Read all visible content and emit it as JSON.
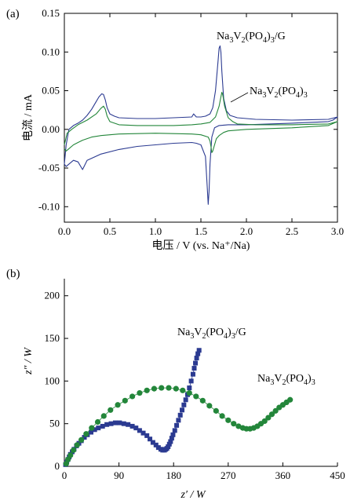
{
  "colors": {
    "blue": "#2b3a91",
    "green": "#23863a",
    "axis": "#000000"
  },
  "chart_data": [
    {
      "type": "line",
      "panel_label": "(a)",
      "xlabel": "电压 / V (vs. Na⁺/Na)",
      "ylabel": "电流 / mA",
      "xlim": [
        0.0,
        3.0
      ],
      "ylim": [
        -0.12,
        0.15
      ],
      "xticks": [
        "0.0",
        "0.5",
        "1.0",
        "1.5",
        "2.0",
        "2.5",
        "3.0"
      ],
      "yticks": [
        "-0.10",
        "-0.05",
        "0.00",
        "0.05",
        "0.10",
        "0.15"
      ],
      "series_labels": [
        "Na3V2(PO4)3/G",
        "Na3V2(PO4)3"
      ],
      "series": [
        {
          "name": "Na3V2(PO4)3/G",
          "color": "#2b3a91",
          "x": [
            0.0,
            0.02,
            0.05,
            0.1,
            0.15,
            0.2,
            0.25,
            0.3,
            0.35,
            0.38,
            0.41,
            0.43,
            0.45,
            0.47,
            0.5,
            0.55,
            0.6,
            0.8,
            1.0,
            1.2,
            1.4,
            1.42,
            1.45,
            1.5,
            1.55,
            1.6,
            1.63,
            1.66,
            1.69,
            1.7,
            1.71,
            1.72,
            1.73,
            1.75,
            1.78,
            1.82,
            1.9,
            2.1,
            2.5,
            2.9,
            3.0,
            2.95,
            2.9,
            2.5,
            2.0,
            1.8,
            1.7,
            1.65,
            1.62,
            1.6,
            1.59,
            1.58,
            1.57,
            1.55,
            1.5,
            1.45,
            1.4,
            1.2,
            1.0,
            0.8,
            0.6,
            0.4,
            0.25,
            0.2,
            0.15,
            0.1,
            0.05,
            0.02,
            0.0
          ],
          "y": [
            -0.045,
            -0.02,
            0.0,
            0.005,
            0.008,
            0.012,
            0.018,
            0.026,
            0.036,
            0.042,
            0.046,
            0.045,
            0.038,
            0.028,
            0.02,
            0.017,
            0.015,
            0.014,
            0.014,
            0.015,
            0.016,
            0.02,
            0.016,
            0.016,
            0.017,
            0.02,
            0.028,
            0.05,
            0.09,
            0.105,
            0.108,
            0.1,
            0.075,
            0.04,
            0.024,
            0.018,
            0.015,
            0.013,
            0.012,
            0.013,
            0.016,
            0.012,
            0.01,
            0.008,
            0.006,
            0.006,
            0.005,
            0.002,
            -0.01,
            -0.045,
            -0.08,
            -0.097,
            -0.075,
            -0.035,
            -0.02,
            -0.018,
            -0.017,
            -0.018,
            -0.02,
            -0.022,
            -0.026,
            -0.032,
            -0.04,
            -0.052,
            -0.042,
            -0.04,
            -0.045,
            -0.048,
            -0.045
          ]
        },
        {
          "name": "Na3V2(PO4)3",
          "color": "#23863a",
          "x": [
            0.0,
            0.03,
            0.08,
            0.15,
            0.25,
            0.35,
            0.4,
            0.43,
            0.45,
            0.47,
            0.5,
            0.6,
            0.8,
            1.0,
            1.2,
            1.4,
            1.5,
            1.6,
            1.66,
            1.7,
            1.72,
            1.73,
            1.74,
            1.76,
            1.8,
            1.85,
            1.9,
            2.1,
            2.5,
            2.9,
            3.0,
            2.9,
            2.5,
            2.0,
            1.8,
            1.75,
            1.7,
            1.67,
            1.65,
            1.63,
            1.62,
            1.61,
            1.6,
            1.58,
            1.5,
            1.4,
            1.0,
            0.6,
            0.4,
            0.3,
            0.25,
            0.2,
            0.15,
            0.1,
            0.05,
            0.02,
            0.0
          ],
          "y": [
            -0.02,
            -0.005,
            0.0,
            0.006,
            0.012,
            0.02,
            0.027,
            0.03,
            0.026,
            0.017,
            0.01,
            0.006,
            0.005,
            0.005,
            0.005,
            0.006,
            0.007,
            0.009,
            0.016,
            0.03,
            0.042,
            0.048,
            0.045,
            0.03,
            0.015,
            0.01,
            0.007,
            0.006,
            0.006,
            0.007,
            0.01,
            0.005,
            0.002,
            0.0,
            -0.002,
            -0.004,
            -0.008,
            -0.012,
            -0.02,
            -0.028,
            -0.03,
            -0.022,
            -0.015,
            -0.01,
            -0.007,
            -0.006,
            -0.005,
            -0.006,
            -0.008,
            -0.01,
            -0.012,
            -0.014,
            -0.017,
            -0.02,
            -0.025,
            -0.028,
            -0.025
          ]
        }
      ]
    },
    {
      "type": "scatter",
      "panel_label": "(b)",
      "xlabel": "z′ / W",
      "ylabel": "z″ / W",
      "xlim": [
        0,
        450
      ],
      "ylim": [
        0,
        220
      ],
      "xticks": [
        "0",
        "90",
        "180",
        "270",
        "360",
        "450"
      ],
      "yticks": [
        "0",
        "50",
        "100",
        "150",
        "200"
      ],
      "series_labels": [
        "Na3V2(PO4)3/G",
        "Na3V2(PO4)3"
      ],
      "series": [
        {
          "name": "Na3V2(PO4)3/G",
          "color": "#2b3a91",
          "marker": "square",
          "x": [
            2,
            4,
            6,
            8,
            10,
            13,
            16,
            20,
            24,
            28,
            33,
            38,
            44,
            50,
            56,
            63,
            70,
            77,
            84,
            91,
            98,
            105,
            112,
            118,
            124,
            130,
            136,
            141,
            146,
            151,
            155,
            159,
            162,
            165,
            167,
            169,
            171,
            173,
            175,
            177,
            179,
            182,
            185,
            188,
            191,
            194,
            197,
            200,
            203,
            206,
            209,
            212,
            214,
            216,
            218,
            220,
            222
          ],
          "y": [
            2,
            5,
            8,
            11,
            14,
            17,
            20,
            24,
            27,
            30,
            34,
            37,
            40,
            43,
            45,
            47,
            49,
            50,
            51,
            51,
            50,
            49,
            47,
            45,
            42,
            39,
            36,
            32,
            28,
            25,
            22,
            20,
            19,
            19,
            20,
            21,
            23,
            26,
            29,
            33,
            37,
            42,
            48,
            54,
            60,
            66,
            72,
            78,
            84,
            92,
            100,
            108,
            115,
            121,
            127,
            132,
            136
          ]
        },
        {
          "name": "Na3V2(PO4)3",
          "color": "#23863a",
          "marker": "circle",
          "x": [
            3,
            6,
            10,
            15,
            21,
            28,
            36,
            45,
            55,
            65,
            76,
            88,
            100,
            112,
            124,
            136,
            148,
            160,
            172,
            184,
            195,
            206,
            217,
            228,
            239,
            250,
            260,
            270,
            279,
            287,
            294,
            300,
            306,
            312,
            318,
            324,
            330,
            336,
            342,
            348,
            354,
            360,
            366,
            372
          ],
          "y": [
            3,
            8,
            13,
            19,
            25,
            31,
            38,
            45,
            52,
            59,
            66,
            72,
            77,
            82,
            86,
            89,
            91,
            92,
            92,
            91,
            89,
            86,
            82,
            77,
            71,
            65,
            59,
            54,
            50,
            47,
            45,
            44,
            44,
            45,
            47,
            50,
            53,
            57,
            61,
            65,
            69,
            72,
            75,
            78
          ]
        }
      ]
    }
  ]
}
